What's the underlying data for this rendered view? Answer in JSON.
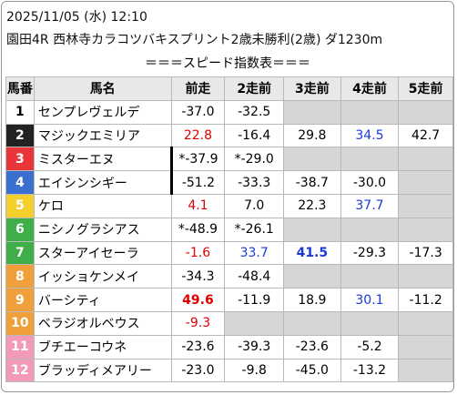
{
  "header": {
    "datetime": "2025/11/05 (水) 12:10",
    "race": "園田4R 西林寺カラコツバキスプリント2歳未勝利(2歳) ダ1230m",
    "title": "＝＝＝スピード指数表＝＝＝"
  },
  "table": {
    "columns": [
      "馬番",
      "馬名",
      "前走",
      "2走前",
      "3走前",
      "4走前",
      "5走前"
    ],
    "rows": [
      {
        "number": "1",
        "name": "センプレヴェルデ",
        "bg": "#ffffff",
        "fg": "#000000",
        "scores": [
          "-37.0",
          "-32.5",
          null,
          null,
          null
        ]
      },
      {
        "number": "2",
        "name": "マジックエミリア",
        "bg": "#222222",
        "fg": "#ffffff",
        "scores": [
          {
            "text": "22.8",
            "color": "#e00000"
          },
          "-16.4",
          "29.8",
          {
            "text": "34.5",
            "color": "#1a3ad6"
          },
          "42.7"
        ]
      },
      {
        "number": "3",
        "name": "ミスターエヌ",
        "bg": "#e8353a",
        "fg": "#ffffff",
        "scores": [
          "*-37.9",
          "*-29.0",
          null,
          null,
          null
        ]
      },
      {
        "number": "4",
        "name": "エイシンシギー",
        "bg": "#3a6fd0",
        "fg": "#ffffff",
        "scores": [
          "-51.2",
          "-33.3",
          "-38.7",
          "-30.0",
          null
        ]
      },
      {
        "number": "5",
        "name": "ケロ",
        "bg": "#f4cf2e",
        "fg": "#ffffff",
        "scores": [
          {
            "text": "4.1",
            "color": "#e00000"
          },
          "7.0",
          "22.3",
          {
            "text": "37.7",
            "color": "#1a3ad6"
          },
          null
        ]
      },
      {
        "number": "6",
        "name": "ニシノグラシアス",
        "bg": "#3fae48",
        "fg": "#ffffff",
        "scores": [
          "*-48.9",
          "*-26.1",
          null,
          null,
          null
        ]
      },
      {
        "number": "7",
        "name": "スターアイセーラ",
        "bg": "#3fae48",
        "fg": "#ffffff",
        "scores": [
          {
            "text": "-1.6",
            "color": "#e00000"
          },
          {
            "text": "33.7",
            "color": "#1a3ad6"
          },
          {
            "text": "41.5",
            "color": "#1a3ad6",
            "bold": true
          },
          "-29.3",
          "-17.3"
        ]
      },
      {
        "number": "8",
        "name": "イッショケンメイ",
        "bg": "#f0a03a",
        "fg": "#ffffff",
        "scores": [
          "-34.3",
          "-48.4",
          null,
          null,
          null
        ]
      },
      {
        "number": "9",
        "name": "バーシティ",
        "bg": "#f0a03a",
        "fg": "#ffffff",
        "scores": [
          {
            "text": "49.6",
            "color": "#e00000",
            "bold": true
          },
          "-11.9",
          "18.9",
          {
            "text": "30.1",
            "color": "#1a3ad6"
          },
          "-11.2"
        ]
      },
      {
        "number": "10",
        "name": "ベラジオルベウス",
        "bg": "#f0a03a",
        "fg": "#ffffff",
        "scores": [
          {
            "text": "-9.3",
            "color": "#e00000"
          },
          null,
          null,
          null,
          null
        ]
      },
      {
        "number": "11",
        "name": "ブチエーコウネ",
        "bg": "#f29ab8",
        "fg": "#ffffff",
        "scores": [
          "-23.6",
          "-39.3",
          "-23.6",
          "-5.2",
          null
        ]
      },
      {
        "number": "12",
        "name": "ブラッディメアリー",
        "bg": "#f29ab8",
        "fg": "#ffffff",
        "scores": [
          "-23.0",
          "-9.8",
          "-45.0",
          "-13.2",
          null
        ]
      }
    ]
  }
}
